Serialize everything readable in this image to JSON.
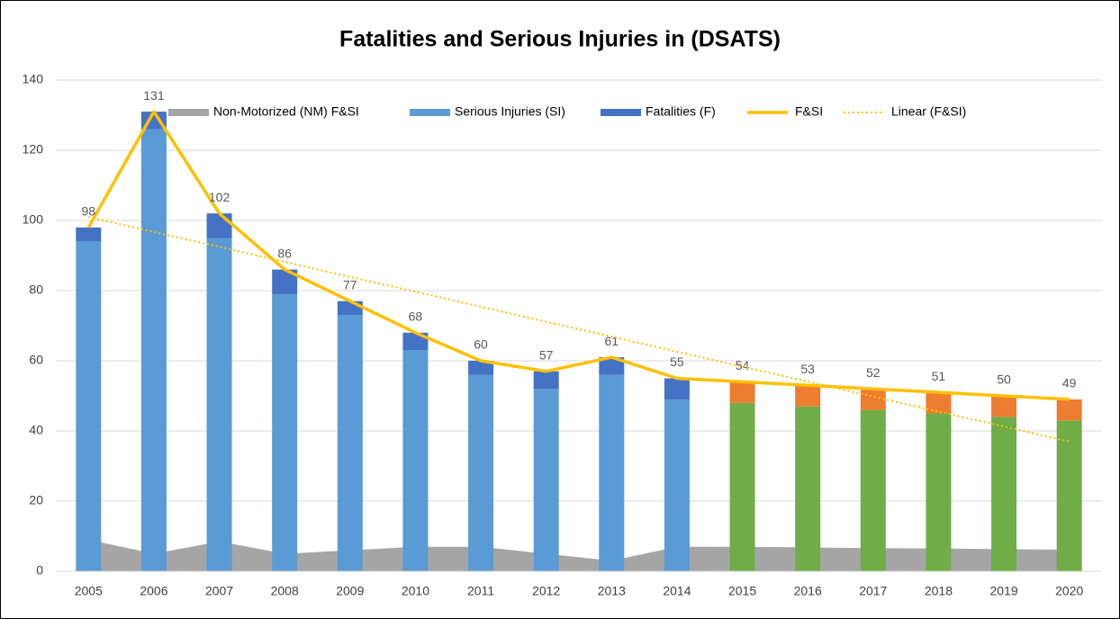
{
  "chart_data": {
    "type": "bar",
    "title": "Fatalities and Serious Injuries in (DSATS)",
    "categories": [
      "2005",
      "2006",
      "2007",
      "2008",
      "2009",
      "2010",
      "2011",
      "2012",
      "2013",
      "2014",
      "2015",
      "2016",
      "2017",
      "2018",
      "2019",
      "2020"
    ],
    "ylim": [
      0,
      140
    ],
    "yticks": [
      0,
      20,
      40,
      60,
      80,
      100,
      120,
      140
    ],
    "grid": true,
    "legend": "top",
    "series": [
      {
        "name": "Non-Motorized (NM) F&SI",
        "type": "area",
        "color": "#a5a5a5",
        "values": [
          9,
          5,
          8.5,
          5,
          6,
          7,
          7,
          5,
          3,
          7,
          7,
          6.8,
          6.6,
          6.5,
          6.3,
          6.2
        ]
      },
      {
        "name": "Serious Injuries (SI)",
        "type": "bar",
        "color": "#5b9bd5",
        "values": [
          94,
          126,
          95,
          79,
          73,
          63,
          56,
          52,
          56,
          49,
          48,
          47,
          46,
          45,
          44,
          43
        ],
        "point_colors": [
          "#5b9bd5",
          "#5b9bd5",
          "#5b9bd5",
          "#5b9bd5",
          "#5b9bd5",
          "#5b9bd5",
          "#5b9bd5",
          "#5b9bd5",
          "#5b9bd5",
          "#5b9bd5",
          "#70ad47",
          "#70ad47",
          "#70ad47",
          "#70ad47",
          "#70ad47",
          "#70ad47"
        ]
      },
      {
        "name": "Fatalities (F)",
        "type": "bar",
        "color": "#4472c4",
        "values": [
          4,
          5,
          7,
          7,
          4,
          5,
          4,
          5,
          5,
          6,
          6,
          6,
          6,
          6,
          6,
          6
        ],
        "point_colors": [
          "#4472c4",
          "#4472c4",
          "#4472c4",
          "#4472c4",
          "#4472c4",
          "#4472c4",
          "#4472c4",
          "#4472c4",
          "#4472c4",
          "#4472c4",
          "#ed7d31",
          "#ed7d31",
          "#ed7d31",
          "#ed7d31",
          "#ed7d31",
          "#ed7d31"
        ]
      },
      {
        "name": "F&SI",
        "type": "line",
        "color": "#ffc000",
        "data_labels": true,
        "values": [
          98,
          131,
          102,
          86,
          77,
          68,
          60,
          57,
          61,
          55,
          54,
          53,
          52,
          51,
          50,
          49
        ]
      },
      {
        "name": "Linear (F&SI)",
        "type": "line",
        "color": "#ffc000",
        "dashed": true,
        "values": [
          101,
          96.7,
          92.5,
          88.2,
          83.9,
          79.7,
          75.4,
          71.1,
          66.9,
          62.6,
          58.3,
          54.1,
          49.8,
          45.5,
          41.3,
          37
        ]
      }
    ]
  }
}
